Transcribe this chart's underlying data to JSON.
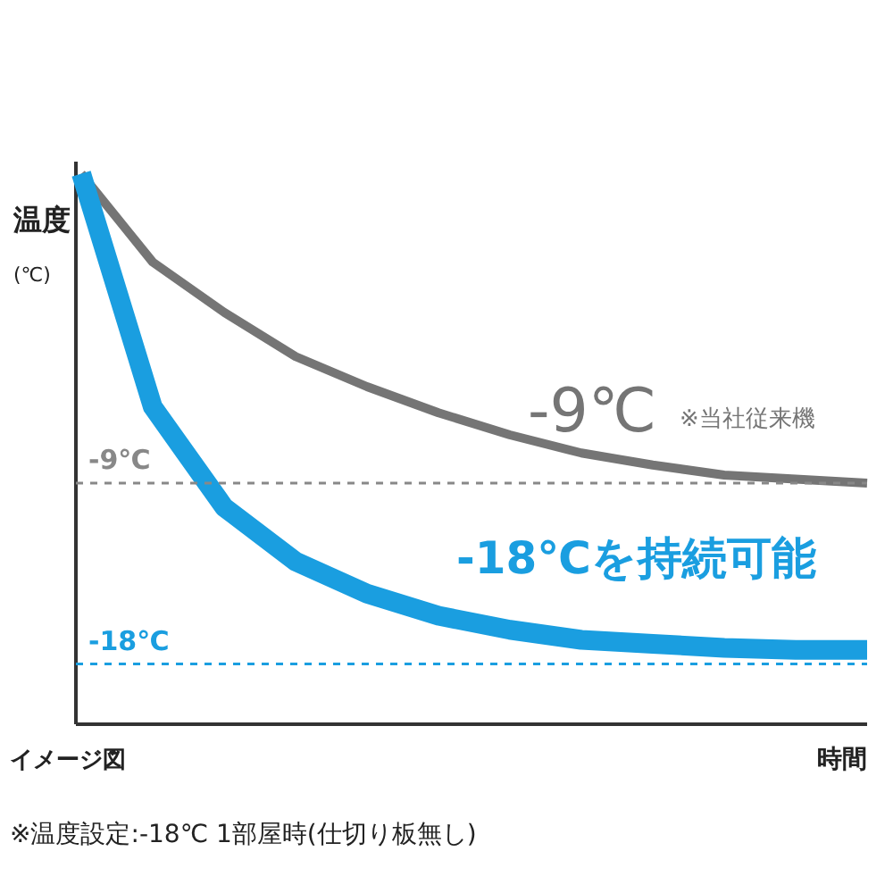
{
  "chart_data": {
    "type": "line",
    "ylabel": "温度\n(℃)",
    "xlabel": "時間",
    "categories": [
      null,
      null,
      null,
      null,
      null,
      null,
      null,
      null,
      null,
      null,
      null,
      null
    ],
    "ylim": [
      -21,
      7
    ],
    "marker": "none",
    "line_style": "solid",
    "series": [
      {
        "color": "#757575",
        "values": [
          6.4,
          2.0,
          -0.5,
          -2.7,
          -4.2,
          -5.5,
          -6.6,
          -7.5,
          -8.1,
          -8.6,
          -8.8,
          -9.0
        ]
      },
      {
        "color": "#1a9ee0",
        "values": [
          6.4,
          -5.2,
          -10.2,
          -12.9,
          -14.5,
          -15.6,
          -16.3,
          -16.8,
          -17.0,
          -17.2,
          -17.3,
          -17.3
        ]
      }
    ],
    "ref_lines": [
      {
        "axis": "y",
        "value": -9,
        "label": "-9℃",
        "color": "#888888",
        "line_style": "dashed"
      },
      {
        "axis": "y",
        "value": -18,
        "label": "-18℃",
        "color": "#1a9ee0",
        "line_style": "dashed"
      }
    ],
    "annotations": [
      "-9℃",
      "※当社従来機",
      "-18℃を持続可能",
      "イメージ図",
      "※温度設定:-18℃ 1部屋時(仕切り板無し)"
    ]
  }
}
